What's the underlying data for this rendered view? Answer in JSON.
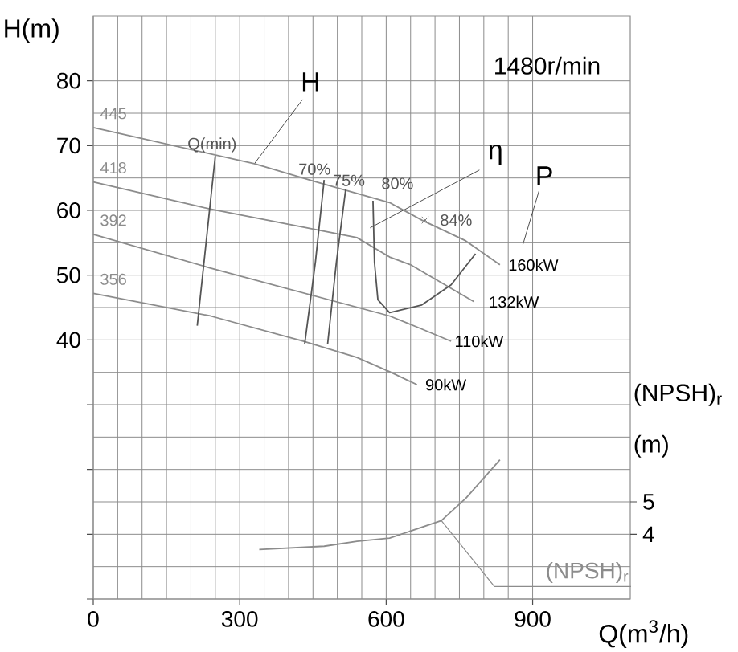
{
  "chart_data": {
    "type": "line",
    "xlabel": "Q(m$^{3}$/h)",
    "ylabel": "H(m)",
    "y2label": "(NPSH)$_{r}$ (m)",
    "xlim": [
      0,
      1100
    ],
    "ylim": [
      0,
      90
    ],
    "y2lim": [
      2,
      20
    ],
    "xticks": [
      0,
      300,
      600,
      900
    ],
    "yticks": [
      {
        "value": 0,
        "label": null
      },
      {
        "value": 10,
        "label": null
      },
      {
        "value": 20,
        "label": null
      },
      {
        "value": 30,
        "label": null
      },
      40,
      50,
      60,
      70,
      80
    ],
    "y2ticks": [
      4,
      5
    ],
    "grid": true,
    "marker": "none",
    "series": [
      {
        "name": "445",
        "color": "#8c8c8c",
        "x": [
          0,
          330,
          457,
          607,
          673,
          763,
          833
        ],
        "values": [
          72.8,
          67.2,
          64.4,
          61.2,
          58.5,
          55.3,
          51.6
        ]
      },
      {
        "name": "418",
        "color": "#8c8c8c",
        "x": [
          0,
          240,
          540,
          607,
          650,
          780
        ],
        "values": [
          64.4,
          60.2,
          55.8,
          52.8,
          51.6,
          45.9
        ]
      },
      {
        "name": "392",
        "color": "#8c8c8c",
        "x": [
          0,
          240,
          607,
          663,
          733
        ],
        "values": [
          56.3,
          51.1,
          43.7,
          42.0,
          39.8
        ]
      },
      {
        "name": "356",
        "color": "#8c8c8c",
        "x": [
          0,
          240,
          430,
          540,
          607,
          663
        ],
        "values": [
          47.2,
          43.7,
          39.8,
          37.3,
          35.1,
          33.1
        ]
      },
      {
        "name": "70%",
        "color": "#555555",
        "x": [
          473,
          455,
          433
        ],
        "values": [
          64.7,
          52.0,
          39.3
        ]
      },
      {
        "name": "75%",
        "color": "#555555",
        "x": [
          517,
          498,
          480
        ],
        "values": [
          63.2,
          52.0,
          39.3
        ]
      },
      {
        "name": "80%",
        "color": "#555555",
        "x": [
          573,
          576,
          583,
          607,
          673,
          733,
          783
        ],
        "values": [
          61.5,
          52.0,
          46.2,
          44.2,
          45.4,
          48.5,
          53.3
        ]
      },
      {
        "name": "84%",
        "type": "scatter",
        "marker": "cross",
        "color": "#555555",
        "x": [
          680
        ],
        "values": [
          58.5
        ]
      },
      {
        "name": "Q(min)",
        "color": "#555555",
        "x": [
          250,
          213
        ],
        "values": [
          68.4,
          42.2
        ]
      },
      {
        "name": "(NPSH)$_{r}$",
        "color": "#8c8c8c",
        "axis": "y2",
        "x": [
          340,
          473,
          540,
          607,
          713,
          763,
          833
        ],
        "values": [
          3.53,
          3.63,
          3.78,
          3.88,
          4.42,
          5.11,
          6.3
        ]
      }
    ],
    "annotations": [
      {
        "text": "H",
        "x": 330,
        "y": 67.2
      },
      {
        "text": "η",
        "x": 567,
        "y": 57.3
      },
      "P",
      {
        "text": "160kW",
        "x": 833,
        "y": 51.6
      },
      {
        "text": "132kW",
        "x": 780,
        "y": 45.9
      },
      {
        "text": "110kW",
        "x": 733,
        "y": 39.8
      },
      {
        "text": "90kW",
        "x": 663,
        "y": 33.1
      },
      "1480r/min"
    ]
  }
}
